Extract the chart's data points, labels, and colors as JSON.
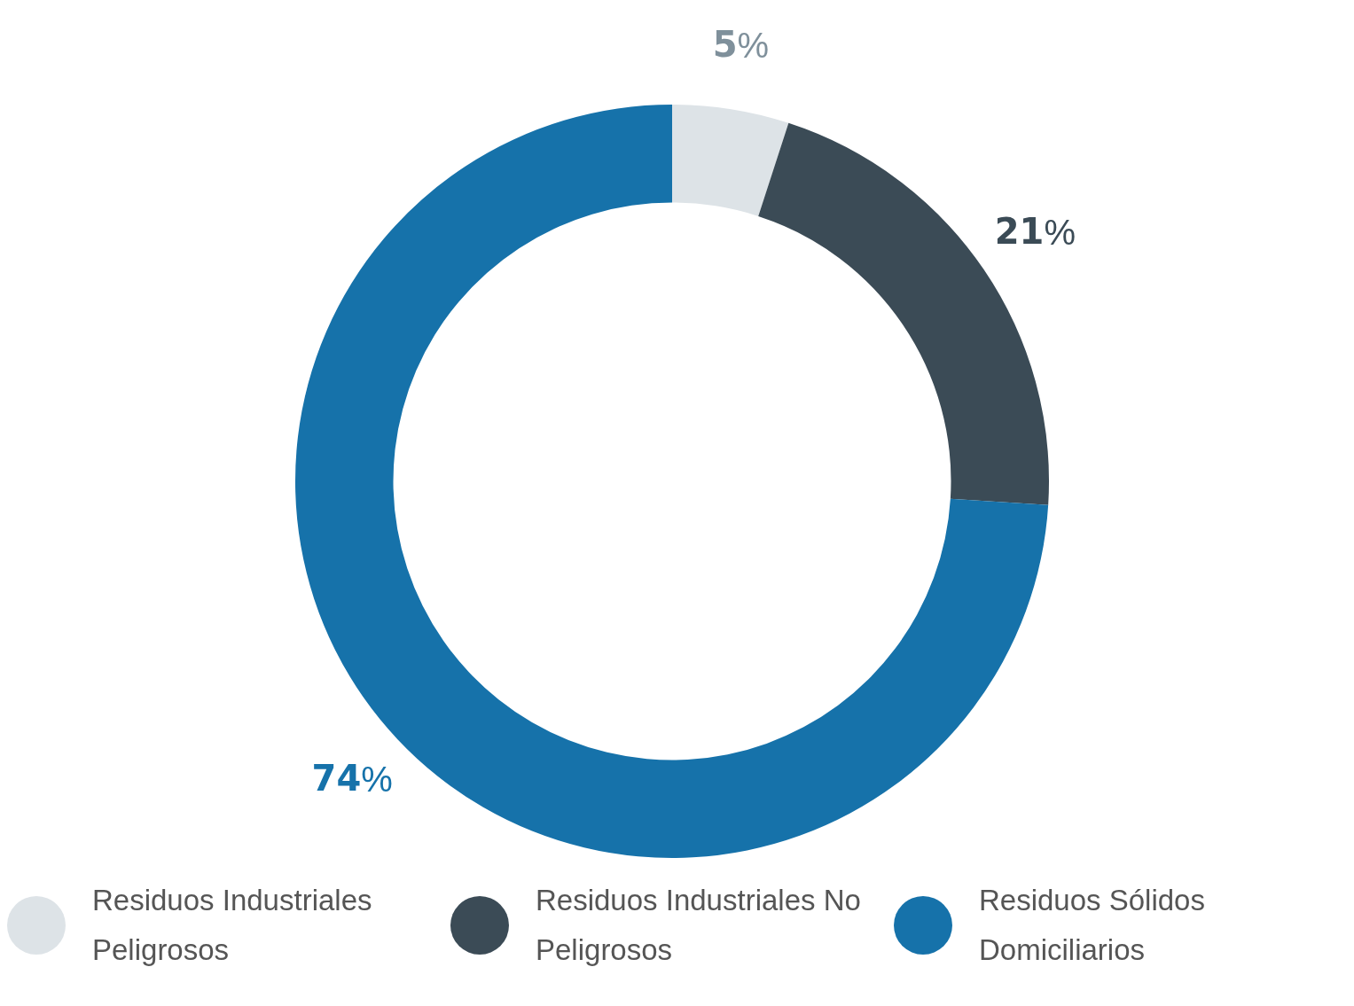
{
  "chart_data": {
    "type": "donut",
    "categories": [
      "Residuos Industriales Peligrosos",
      "Residuos Industriales No Peligrosos",
      "Residuos Sólidos Domiciliarios"
    ],
    "values": [
      5,
      21,
      74
    ],
    "colors": [
      "#dde3e7",
      "#3b4b56",
      "#1672aa"
    ],
    "value_labels": [
      "5%",
      "21%",
      "74%"
    ],
    "legend": "bottom"
  }
}
